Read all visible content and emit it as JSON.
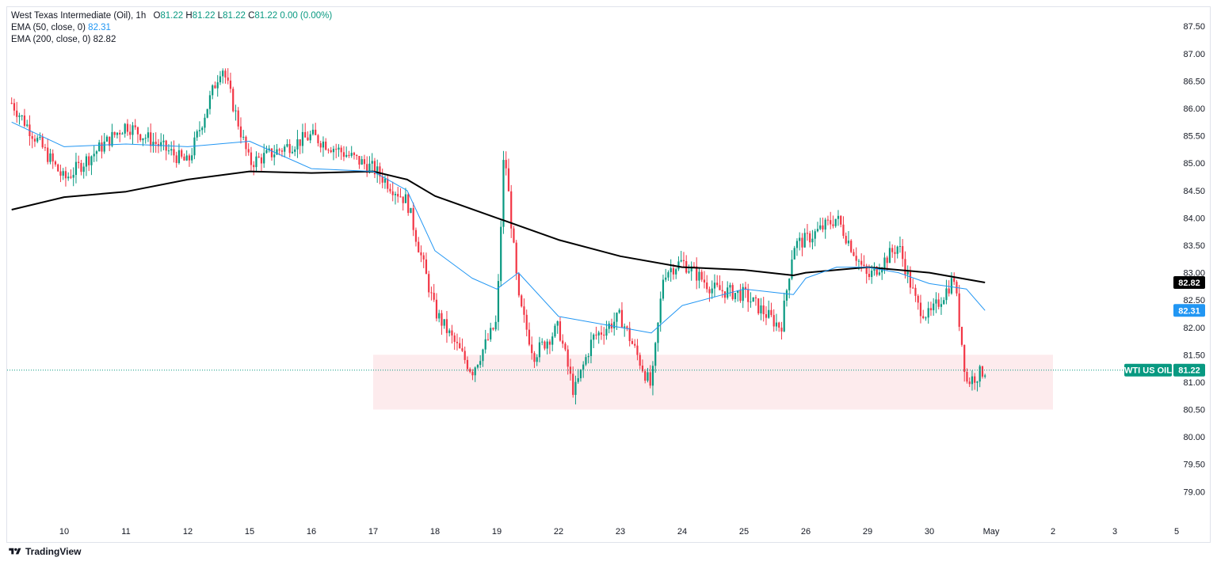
{
  "legend": {
    "symbol": "West Texas Intermediate (Oil), 1h",
    "o_label": "O",
    "o": "81.22",
    "h_label": "H",
    "h": "81.22",
    "l_label": "L",
    "l": "81.22",
    "c_label": "C",
    "c": "81.22",
    "change": "0.00 (0.00%)",
    "ema50_label": "EMA (50, close, 0)",
    "ema50": "82.31",
    "ema200_label": "EMA (200, close, 0)",
    "ema200": "82.82"
  },
  "footer": {
    "brand": "TradingView"
  },
  "colors": {
    "up": "#089981",
    "down": "#f23645",
    "ema50": "#2196f3",
    "ema200": "#000000",
    "zone": "#fde8ea",
    "price_line": "#089981"
  },
  "chart_data": {
    "type": "candlestick",
    "y_ticks": [
      "87.50",
      "87.00",
      "86.50",
      "86.00",
      "85.50",
      "85.00",
      "84.50",
      "84.00",
      "83.50",
      "83.00",
      "82.50",
      "82.00",
      "81.50",
      "81.00",
      "80.50",
      "80.00",
      "79.50",
      "79.00"
    ],
    "x_ticks": [
      "10",
      "11",
      "12",
      "15",
      "16",
      "17",
      "18",
      "19",
      "22",
      "23",
      "24",
      "25",
      "26",
      "29",
      "30",
      "May",
      "2",
      "3",
      "5"
    ],
    "ylim": [
      78.6,
      87.85
    ],
    "support_zone": {
      "from_tick": "17",
      "to_tick": "2",
      "low": 80.5,
      "high": 81.5
    },
    "last_price": {
      "label": "WTI US OIL",
      "value": "81.22"
    },
    "ema50_badge": "82.31",
    "ema200_badge": "82.82",
    "price_path": [
      [
        "09",
        86.1
      ],
      [
        "10",
        84.7
      ],
      [
        "11",
        85.7
      ],
      [
        "12",
        85.0
      ],
      [
        "12.5",
        86.8
      ],
      [
        "15",
        85.0
      ],
      [
        "16",
        85.5
      ],
      [
        "17",
        84.9
      ],
      [
        "17.5",
        84.3
      ],
      [
        "18",
        82.3
      ],
      [
        "18.5",
        81.2
      ],
      [
        "19",
        82.1
      ],
      [
        "19.1",
        85.3
      ],
      [
        "19.3",
        82.5
      ],
      [
        "19.6",
        81.5
      ],
      [
        "22",
        82.0
      ],
      [
        "22.3",
        80.8
      ],
      [
        "22.6",
        81.8
      ],
      [
        "23",
        82.2
      ],
      [
        "23.5",
        80.9
      ],
      [
        "23.7",
        83.0
      ],
      [
        "24",
        83.2
      ],
      [
        "24.5",
        82.7
      ],
      [
        "25",
        82.6
      ],
      [
        "25.6",
        82.0
      ],
      [
        "25.8",
        83.5
      ],
      [
        "26",
        83.6
      ],
      [
        "26.5",
        84.0
      ],
      [
        "29",
        82.9
      ],
      [
        "29.5",
        83.5
      ],
      [
        "29.8",
        82.4
      ],
      [
        "30",
        82.2
      ],
      [
        "30.4",
        82.9
      ],
      [
        "30.6",
        81.0
      ],
      [
        "30.9",
        81.22
      ]
    ],
    "ema50": [
      [
        "09",
        85.75
      ],
      [
        "10",
        85.3
      ],
      [
        "11",
        85.35
      ],
      [
        "12",
        85.3
      ],
      [
        "15",
        85.4
      ],
      [
        "16",
        84.9
      ],
      [
        "17",
        84.85
      ],
      [
        "17.5",
        84.5
      ],
      [
        "18",
        83.4
      ],
      [
        "18.5",
        82.9
      ],
      [
        "19",
        82.7
      ],
      [
        "19.3",
        83.0
      ],
      [
        "22",
        82.2
      ],
      [
        "23",
        82.0
      ],
      [
        "23.5",
        81.9
      ],
      [
        "24",
        82.4
      ],
      [
        "25",
        82.7
      ],
      [
        "25.8",
        82.6
      ],
      [
        "26",
        82.9
      ],
      [
        "26.5",
        83.1
      ],
      [
        "29",
        83.1
      ],
      [
        "29.5",
        83.0
      ],
      [
        "30",
        82.8
      ],
      [
        "30.6",
        82.7
      ],
      [
        "30.9",
        82.31
      ]
    ],
    "ema200": [
      [
        "09",
        84.15
      ],
      [
        "10",
        84.38
      ],
      [
        "11",
        84.48
      ],
      [
        "12",
        84.7
      ],
      [
        "15",
        84.85
      ],
      [
        "16",
        84.82
      ],
      [
        "17",
        84.85
      ],
      [
        "17.5",
        84.7
      ],
      [
        "18",
        84.4
      ],
      [
        "19",
        84.0
      ],
      [
        "22",
        83.6
      ],
      [
        "23",
        83.3
      ],
      [
        "24",
        83.1
      ],
      [
        "25",
        83.05
      ],
      [
        "25.8",
        82.95
      ],
      [
        "26",
        83.0
      ],
      [
        "29",
        83.1
      ],
      [
        "30",
        83.0
      ],
      [
        "30.9",
        82.82
      ]
    ]
  }
}
